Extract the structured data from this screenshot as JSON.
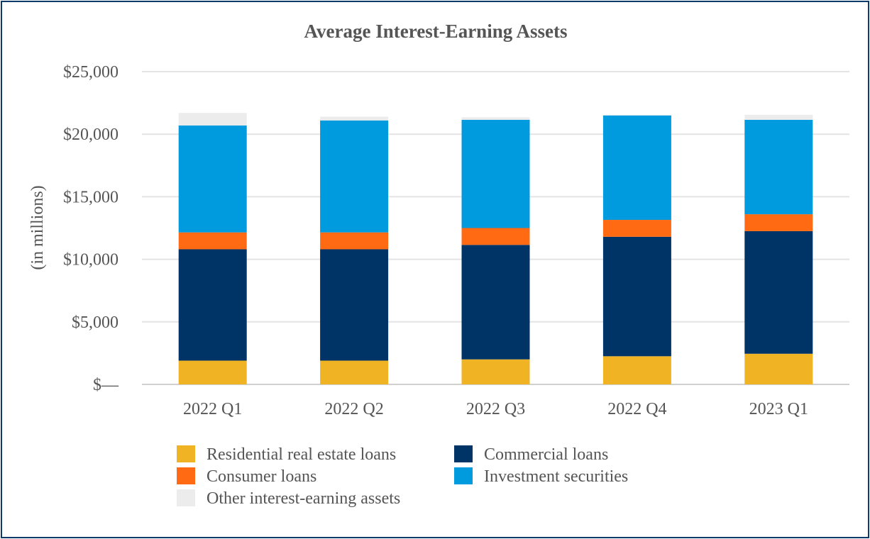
{
  "chart_data": {
    "type": "bar",
    "stacked": true,
    "title": "Average Interest-Earning Assets",
    "xlabel": "",
    "ylabel": "(in millions)",
    "ylim": [
      0,
      25000
    ],
    "yticks": [
      0,
      5000,
      10000,
      15000,
      20000,
      25000
    ],
    "ytick_labels": [
      "$—",
      "$5,000",
      "$10,000",
      "$15,000",
      "$20,000",
      "$25,000"
    ],
    "grid": true,
    "legend_position": "bottom",
    "categories": [
      "2022 Q1",
      "2022 Q2",
      "2022 Q3",
      "2022 Q4",
      "2023 Q1"
    ],
    "series": [
      {
        "name": "Residential real estate loans",
        "color": "#f0b323",
        "values": [
          1900,
          1900,
          2000,
          2250,
          2450
        ]
      },
      {
        "name": "Commercial loans",
        "color": "#003366",
        "values": [
          8900,
          8900,
          9150,
          9550,
          9800
        ]
      },
      {
        "name": "Consumer loans",
        "color": "#ff6a13",
        "values": [
          1350,
          1350,
          1350,
          1350,
          1350
        ]
      },
      {
        "name": "Investment securities",
        "color": "#009ade",
        "values": [
          8550,
          8950,
          8650,
          8350,
          7550
        ]
      },
      {
        "name": "Other interest-earning assets",
        "color": "#ececec",
        "values": [
          1000,
          300,
          200,
          50,
          400
        ]
      }
    ],
    "legend_order": [
      0,
      1,
      2,
      3,
      4
    ]
  }
}
